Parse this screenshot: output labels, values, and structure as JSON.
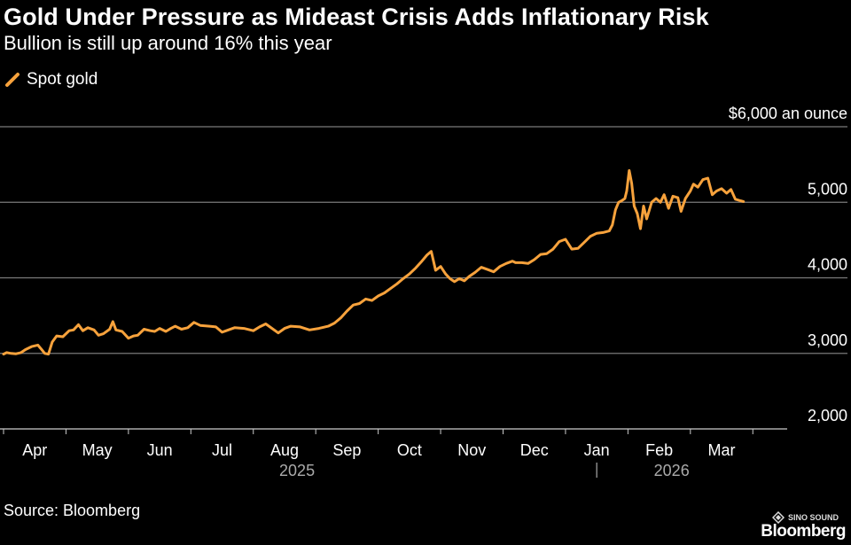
{
  "chart_data": {
    "type": "line",
    "title": "Gold Under Pressure as Mideast Crisis Adds Inflationary Risk",
    "subtitle": "Bullion is still up around 16% this year",
    "source": "Source: Bloomberg",
    "brand": "Bloomberg",
    "watermark": "SINO SOUND",
    "unit_label": "$6,000 an ounce",
    "ylim": [
      2000,
      6000
    ],
    "yticks": [
      {
        "value": 6000,
        "label": "$6,000 an ounce"
      },
      {
        "value": 5000,
        "label": "5,000"
      },
      {
        "value": 4000,
        "label": "4,000"
      },
      {
        "value": 3000,
        "label": "3,000"
      },
      {
        "value": 2000,
        "label": "2,000"
      }
    ],
    "x_range_months": [
      0.0,
      12.55
    ],
    "xticks": [
      {
        "pos": 0.5,
        "label": "Apr"
      },
      {
        "pos": 1.5,
        "label": "May"
      },
      {
        "pos": 2.5,
        "label": "Jun"
      },
      {
        "pos": 3.5,
        "label": "Jul"
      },
      {
        "pos": 4.5,
        "label": "Aug"
      },
      {
        "pos": 5.5,
        "label": "Sep"
      },
      {
        "pos": 6.5,
        "label": "Oct"
      },
      {
        "pos": 7.5,
        "label": "Nov"
      },
      {
        "pos": 8.5,
        "label": "Dec"
      },
      {
        "pos": 9.5,
        "label": "Jan"
      },
      {
        "pos": 10.5,
        "label": "Feb"
      },
      {
        "pos": 11.5,
        "label": "Mar"
      }
    ],
    "years": [
      {
        "pos": 4.7,
        "label": "2025"
      },
      {
        "pos": 10.7,
        "label": "2026"
      }
    ],
    "year_divider_pos": 9.5,
    "series": [
      {
        "name": "Spot gold",
        "color": "#f7a23c",
        "points": [
          [
            0.0,
            2990
          ],
          [
            0.05,
            3010
          ],
          [
            0.12,
            3000
          ],
          [
            0.2,
            2995
          ],
          [
            0.28,
            3010
          ],
          [
            0.35,
            3050
          ],
          [
            0.45,
            3090
          ],
          [
            0.55,
            3110
          ],
          [
            0.6,
            3060
          ],
          [
            0.66,
            3000
          ],
          [
            0.72,
            2990
          ],
          [
            0.78,
            3150
          ],
          [
            0.85,
            3230
          ],
          [
            0.95,
            3220
          ],
          [
            1.05,
            3300
          ],
          [
            1.12,
            3310
          ],
          [
            1.2,
            3380
          ],
          [
            1.27,
            3300
          ],
          [
            1.35,
            3340
          ],
          [
            1.45,
            3310
          ],
          [
            1.52,
            3240
          ],
          [
            1.6,
            3260
          ],
          [
            1.7,
            3320
          ],
          [
            1.75,
            3420
          ],
          [
            1.8,
            3310
          ],
          [
            1.9,
            3290
          ],
          [
            2.0,
            3200
          ],
          [
            2.08,
            3230
          ],
          [
            2.15,
            3240
          ],
          [
            2.25,
            3320
          ],
          [
            2.35,
            3300
          ],
          [
            2.42,
            3290
          ],
          [
            2.5,
            3330
          ],
          [
            2.6,
            3290
          ],
          [
            2.68,
            3330
          ],
          [
            2.75,
            3360
          ],
          [
            2.85,
            3320
          ],
          [
            2.95,
            3340
          ],
          [
            3.05,
            3410
          ],
          [
            3.15,
            3370
          ],
          [
            3.3,
            3360
          ],
          [
            3.4,
            3350
          ],
          [
            3.5,
            3280
          ],
          [
            3.6,
            3310
          ],
          [
            3.7,
            3340
          ],
          [
            3.85,
            3330
          ],
          [
            4.0,
            3300
          ],
          [
            4.1,
            3350
          ],
          [
            4.2,
            3390
          ],
          [
            4.3,
            3330
          ],
          [
            4.4,
            3270
          ],
          [
            4.5,
            3330
          ],
          [
            4.6,
            3360
          ],
          [
            4.75,
            3350
          ],
          [
            4.9,
            3310
          ],
          [
            5.05,
            3330
          ],
          [
            5.2,
            3360
          ],
          [
            5.3,
            3400
          ],
          [
            5.4,
            3470
          ],
          [
            5.5,
            3560
          ],
          [
            5.6,
            3640
          ],
          [
            5.7,
            3660
          ],
          [
            5.8,
            3720
          ],
          [
            5.9,
            3700
          ],
          [
            6.0,
            3760
          ],
          [
            6.1,
            3800
          ],
          [
            6.2,
            3860
          ],
          [
            6.3,
            3920
          ],
          [
            6.4,
            3990
          ],
          [
            6.5,
            4050
          ],
          [
            6.6,
            4130
          ],
          [
            6.7,
            4220
          ],
          [
            6.78,
            4300
          ],
          [
            6.85,
            4350
          ],
          [
            6.92,
            4100
          ],
          [
            7.0,
            4150
          ],
          [
            7.08,
            4050
          ],
          [
            7.15,
            3990
          ],
          [
            7.22,
            3950
          ],
          [
            7.3,
            3990
          ],
          [
            7.38,
            3960
          ],
          [
            7.46,
            4020
          ],
          [
            7.55,
            4070
          ],
          [
            7.65,
            4140
          ],
          [
            7.75,
            4110
          ],
          [
            7.85,
            4080
          ],
          [
            7.95,
            4150
          ],
          [
            8.05,
            4190
          ],
          [
            8.15,
            4220
          ],
          [
            8.2,
            4200
          ],
          [
            8.3,
            4200
          ],
          [
            8.4,
            4190
          ],
          [
            8.5,
            4240
          ],
          [
            8.6,
            4310
          ],
          [
            8.7,
            4320
          ],
          [
            8.8,
            4380
          ],
          [
            8.9,
            4480
          ],
          [
            9.0,
            4510
          ],
          [
            9.1,
            4380
          ],
          [
            9.2,
            4390
          ],
          [
            9.3,
            4470
          ],
          [
            9.4,
            4550
          ],
          [
            9.5,
            4590
          ],
          [
            9.6,
            4600
          ],
          [
            9.7,
            4620
          ],
          [
            9.75,
            4700
          ],
          [
            9.8,
            4900
          ],
          [
            9.85,
            5000
          ],
          [
            9.9,
            5020
          ],
          [
            9.95,
            5050
          ],
          [
            9.98,
            5150
          ],
          [
            10.02,
            5420
          ],
          [
            10.06,
            5250
          ],
          [
            10.1,
            4950
          ],
          [
            10.15,
            4850
          ],
          [
            10.2,
            4650
          ],
          [
            10.25,
            4950
          ],
          [
            10.3,
            4780
          ],
          [
            10.38,
            5000
          ],
          [
            10.45,
            5050
          ],
          [
            10.52,
            5000
          ],
          [
            10.58,
            5100
          ],
          [
            10.65,
            4920
          ],
          [
            10.72,
            5080
          ],
          [
            10.8,
            5060
          ],
          [
            10.85,
            4880
          ],
          [
            10.92,
            5050
          ],
          [
            11.0,
            5150
          ],
          [
            11.05,
            5240
          ],
          [
            11.12,
            5200
          ],
          [
            11.2,
            5300
          ],
          [
            11.28,
            5320
          ],
          [
            11.35,
            5100
          ],
          [
            11.42,
            5150
          ],
          [
            11.5,
            5180
          ],
          [
            11.58,
            5120
          ],
          [
            11.65,
            5170
          ],
          [
            11.72,
            5040
          ],
          [
            11.8,
            5020
          ],
          [
            11.85,
            5010
          ]
        ]
      }
    ]
  }
}
